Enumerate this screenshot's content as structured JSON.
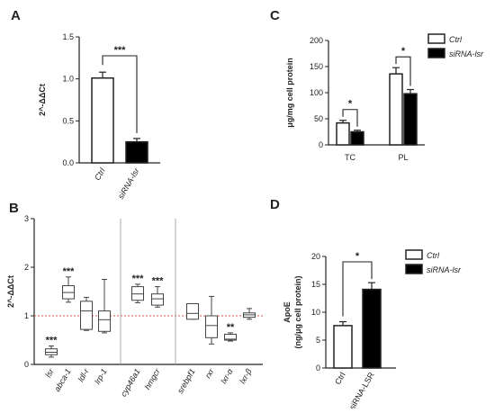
{
  "chart_data": [
    {
      "panel": "A",
      "type": "bar",
      "ylabel": "2^-ΔΔCt",
      "ylim": [
        0,
        1.5
      ],
      "yticks": [
        "0.0",
        "0.5",
        "1.0",
        "1.5"
      ],
      "categories": [
        "Ctrl",
        "siRNA-lsr"
      ],
      "values": [
        1.01,
        0.25
      ],
      "errors": [
        0.07,
        0.04
      ],
      "fills": [
        "#ffffff",
        "#000000"
      ],
      "significance": "***"
    },
    {
      "panel": "C",
      "type": "bar",
      "ylabel": "μg/mg cell protein",
      "ylim": [
        0,
        200
      ],
      "yticks": [
        "0",
        "50",
        "100",
        "150",
        "200"
      ],
      "categories": [
        "TC",
        "PL"
      ],
      "series": [
        {
          "name": "Ctrl",
          "values": [
            42,
            136
          ],
          "errors": [
            5,
            12
          ],
          "fill": "#ffffff"
        },
        {
          "name": "siRNA-lsr",
          "values": [
            25,
            98
          ],
          "errors": [
            3,
            8
          ],
          "fill": "#000000"
        }
      ],
      "significance": [
        "*",
        "*"
      ],
      "legend": "right"
    },
    {
      "panel": "B",
      "type": "box",
      "ylabel": "2^-ΔΔCt",
      "ylim": [
        0,
        3
      ],
      "yticks": [
        "0",
        "1",
        "2",
        "3"
      ],
      "reference_line": 1,
      "categories": [
        "lsr",
        "abca-1",
        "ldl-r",
        "lrp-1",
        "cyp46a1",
        "hmgcr",
        "srebpf1",
        "rxr",
        "lxr-α",
        "lxr-β"
      ],
      "boxes": [
        {
          "min": 0.15,
          "q1": 0.2,
          "median": 0.25,
          "q3": 0.32,
          "max": 0.38,
          "sig": "***"
        },
        {
          "min": 1.28,
          "q1": 1.35,
          "median": 1.48,
          "q3": 1.62,
          "max": 1.8,
          "sig": "***"
        },
        {
          "min": 0.7,
          "q1": 0.72,
          "median": 1.1,
          "q3": 1.3,
          "max": 1.38,
          "sig": ""
        },
        {
          "min": 0.65,
          "q1": 0.68,
          "median": 0.92,
          "q3": 1.1,
          "max": 1.75,
          "sig": ""
        },
        {
          "min": 1.27,
          "q1": 1.32,
          "median": 1.45,
          "q3": 1.6,
          "max": 1.65,
          "sig": "***"
        },
        {
          "min": 1.18,
          "q1": 1.22,
          "median": 1.35,
          "q3": 1.45,
          "max": 1.6,
          "sig": "***"
        },
        {
          "min": 0.93,
          "q1": 0.93,
          "median": 1.05,
          "q3": 1.25,
          "max": 1.25,
          "sig": ""
        },
        {
          "min": 0.42,
          "q1": 0.55,
          "median": 0.8,
          "q3": 1.0,
          "max": 1.4,
          "sig": ""
        },
        {
          "min": 0.48,
          "q1": 0.5,
          "median": 0.52,
          "q3": 0.62,
          "max": 0.65,
          "sig": "**"
        },
        {
          "min": 0.93,
          "q1": 0.97,
          "median": 1.02,
          "q3": 1.06,
          "max": 1.15,
          "sig": ""
        }
      ],
      "group_dividers_after": [
        "lrp-1",
        "hmgcr"
      ]
    },
    {
      "panel": "D",
      "type": "bar",
      "ylabel": "ApoE",
      "ylabel2": "(ng/μg cell protein)",
      "ylim": [
        0,
        20
      ],
      "yticks": [
        "0",
        "5",
        "10",
        "15",
        "20"
      ],
      "categories": [
        "Ctrl",
        "siRNA-LSR"
      ],
      "values": [
        7.6,
        14.1
      ],
      "errors": [
        0.7,
        1.2
      ],
      "fills": [
        "#ffffff",
        "#000000"
      ],
      "significance": "*",
      "legend": [
        "Ctrl",
        "siRNA-lsr"
      ]
    }
  ],
  "panels": {
    "A": "A",
    "B": "B",
    "C": "C",
    "D": "D"
  }
}
